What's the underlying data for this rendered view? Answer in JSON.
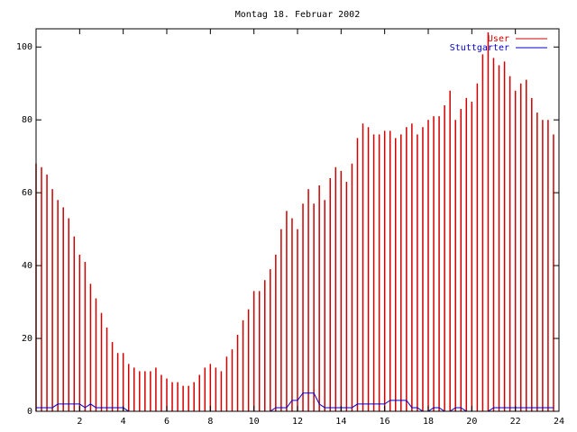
{
  "chart_data": {
    "type": "impulses",
    "title": "Montag 18. Februar 2002",
    "x": [
      0,
      0.25,
      0.5,
      0.75,
      1,
      1.25,
      1.5,
      1.75,
      2,
      2.25,
      2.5,
      2.75,
      3,
      3.25,
      3.5,
      3.75,
      4,
      4.25,
      4.5,
      4.75,
      5,
      5.25,
      5.5,
      5.75,
      6,
      6.25,
      6.5,
      6.75,
      7,
      7.25,
      7.5,
      7.75,
      8,
      8.25,
      8.5,
      8.75,
      9,
      9.25,
      9.5,
      9.75,
      10,
      10.25,
      10.5,
      10.75,
      11,
      11.25,
      11.5,
      11.75,
      12,
      12.25,
      12.5,
      12.75,
      13,
      13.25,
      13.5,
      13.75,
      14,
      14.25,
      14.5,
      14.75,
      15,
      15.25,
      15.5,
      15.75,
      16,
      16.25,
      16.5,
      16.75,
      17,
      17.25,
      17.5,
      17.75,
      18,
      18.25,
      18.5,
      18.75,
      19,
      19.25,
      19.5,
      19.75,
      20,
      20.25,
      20.5,
      20.75,
      21,
      21.25,
      21.5,
      21.75,
      22,
      22.25,
      22.5,
      22.75,
      23,
      23.25,
      23.5,
      23.75
    ],
    "series": [
      {
        "name": "User",
        "color": "#d00000",
        "style": "impulses",
        "values": [
          68,
          67,
          65,
          61,
          58,
          56,
          53,
          48,
          43,
          41,
          35,
          31,
          27,
          23,
          19,
          16,
          16,
          13,
          12,
          11,
          11,
          11,
          12,
          10,
          9,
          8,
          8,
          7,
          7,
          8,
          10,
          12,
          13,
          12,
          11,
          15,
          17,
          21,
          25,
          28,
          33,
          33,
          36,
          39,
          43,
          50,
          55,
          53,
          50,
          57,
          61,
          57,
          62,
          58,
          64,
          67,
          66,
          63,
          68,
          75,
          79,
          78,
          76,
          76,
          77,
          77,
          75,
          76,
          78,
          79,
          76,
          78,
          80,
          81,
          81,
          84,
          88,
          80,
          83,
          86,
          85,
          90,
          98,
          104,
          97,
          95,
          96,
          92,
          88,
          90,
          91,
          86,
          82,
          80,
          80,
          76
        ]
      },
      {
        "name": "Stuttgarter",
        "color": "#0000d0",
        "style": "line",
        "values": [
          1,
          1,
          1,
          1,
          2,
          2,
          2,
          2,
          2,
          1,
          2,
          1,
          1,
          1,
          1,
          1,
          1,
          0,
          0,
          0,
          0,
          0,
          0,
          0,
          0,
          0,
          0,
          0,
          0,
          0,
          0,
          0,
          0,
          0,
          0,
          0,
          0,
          0,
          0,
          0,
          0,
          0,
          0,
          0,
          1,
          1,
          1,
          3,
          3,
          5,
          5,
          5,
          2,
          1,
          1,
          1,
          1,
          1,
          1,
          2,
          2,
          2,
          2,
          2,
          2,
          3,
          3,
          3,
          3,
          1,
          1,
          0,
          0,
          1,
          1,
          0,
          0,
          1,
          1,
          0,
          0,
          0,
          0,
          0,
          1,
          1,
          1,
          1,
          1,
          1,
          1,
          1,
          1,
          1,
          1,
          1
        ]
      }
    ],
    "xlim": [
      0,
      24
    ],
    "xticks": [
      2,
      4,
      6,
      8,
      10,
      12,
      14,
      16,
      18,
      20,
      22,
      24
    ],
    "ylim": [
      0,
      105
    ],
    "yticks": [
      0,
      20,
      40,
      60,
      80,
      100
    ],
    "legend": "top-right"
  }
}
